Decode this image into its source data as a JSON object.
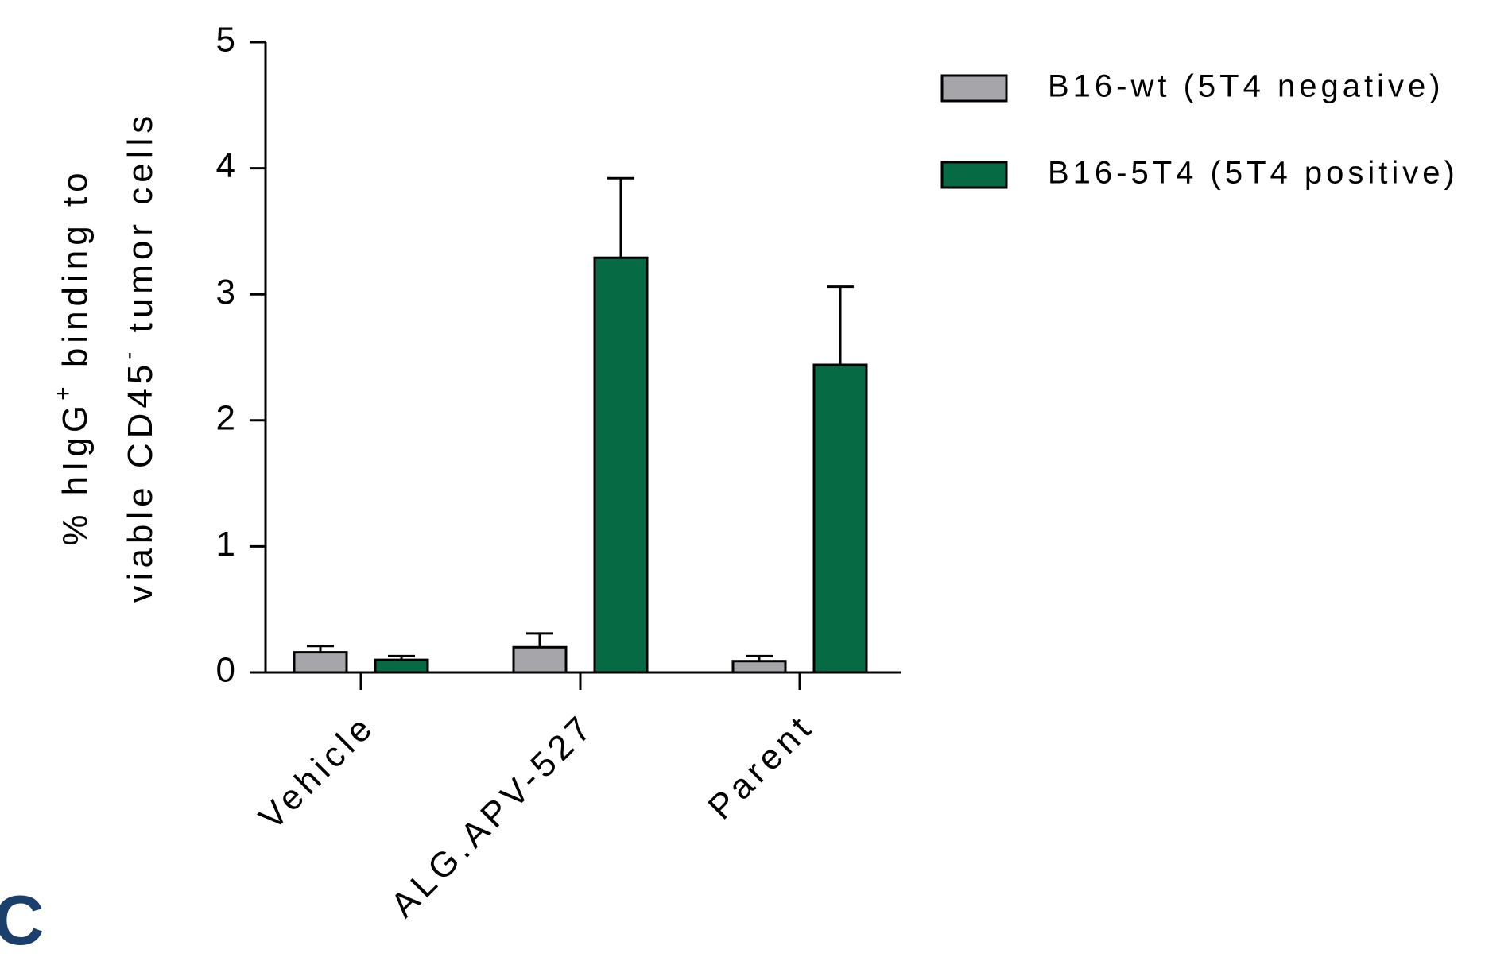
{
  "chart_data": {
    "type": "bar",
    "panel_label": "C",
    "ylabel_line1": "% hIgG",
    "ylabel_line1_sup": "+",
    "ylabel_line1_rest": " binding to",
    "ylabel_line2": "viable CD45",
    "ylabel_line2_sup": "-",
    "ylabel_line2_rest": " tumor cells",
    "categories": [
      "Vehicle",
      "ALG.APV-527",
      "Parent"
    ],
    "ylim": [
      0,
      5
    ],
    "yticks": [
      "0",
      "1",
      "2",
      "3",
      "4",
      "5"
    ],
    "legend_position": "top-right",
    "series": [
      {
        "name": "B16-wt (5T4 negative)",
        "color": "#a5a5aa",
        "values": [
          0.16,
          0.2,
          0.09
        ],
        "errors": [
          0.05,
          0.11,
          0.04
        ]
      },
      {
        "name": "B16-5T4 (5T4 positive)",
        "color": "#066b45",
        "values": [
          0.1,
          3.29,
          2.44
        ],
        "errors": [
          0.03,
          0.63,
          0.62
        ]
      }
    ]
  }
}
